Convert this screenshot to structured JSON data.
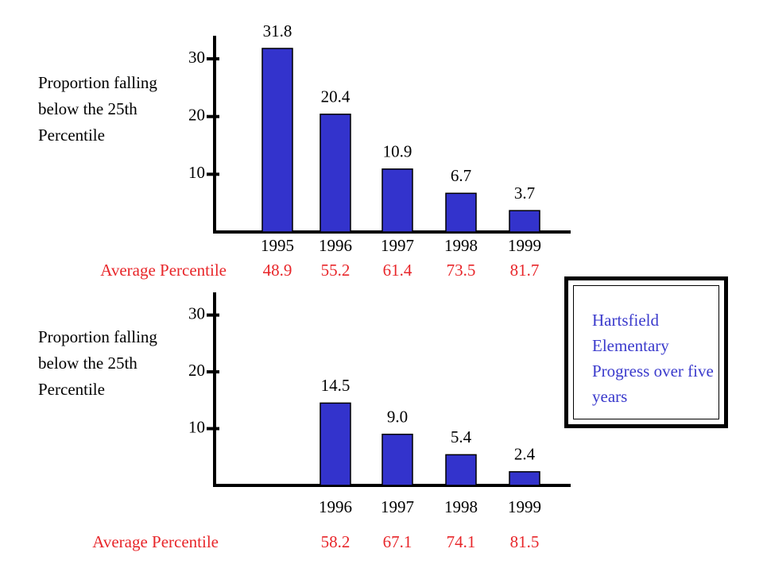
{
  "chart_data": [
    {
      "type": "bar",
      "y_label": "Proportion falling below the 25th Percentile",
      "categories": [
        "1995",
        "1996",
        "1997",
        "1998",
        "1999"
      ],
      "values": [
        31.8,
        20.4,
        10.9,
        6.7,
        3.7
      ],
      "color": "#3333cc",
      "ylim": [
        0,
        34
      ],
      "yticks": [
        10,
        20,
        30
      ],
      "average_label": "Average Percentile",
      "averages": [
        48.9,
        55.2,
        61.4,
        73.5,
        81.7
      ]
    },
    {
      "type": "bar",
      "y_label": "Proportion falling below the 25th Percentile",
      "categories": [
        "1996",
        "1997",
        "1998",
        "1999"
      ],
      "values": [
        14.5,
        9,
        5.4,
        2.4
      ],
      "value_labels": [
        "14.5",
        "9.0",
        "5.4",
        "2.4"
      ],
      "color": "#3333cc",
      "ylim": [
        0,
        34
      ],
      "yticks": [
        10,
        20,
        30
      ],
      "average_label": "Average Percentile",
      "averages": [
        58.2,
        67.1,
        74.1,
        81.5
      ]
    }
  ],
  "sidebar": {
    "text": "Hartsfield Elementary Progress over five years"
  }
}
